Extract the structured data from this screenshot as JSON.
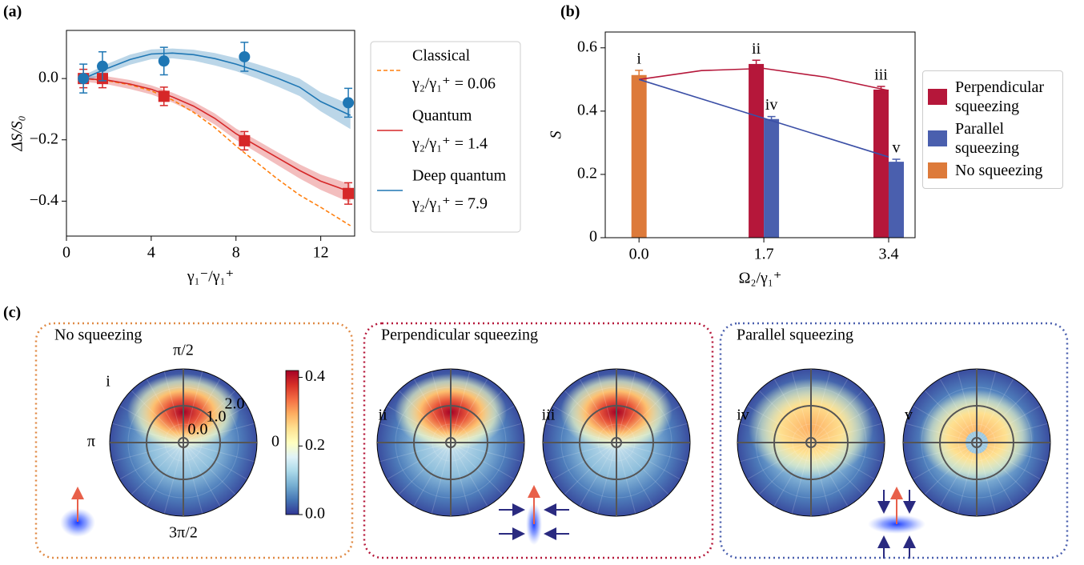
{
  "panel_labels": [
    "(a)",
    "(b)",
    "(c)"
  ],
  "chart_data": [
    {
      "type": "line",
      "xlabel": "γ₁⁻/γ₁⁺",
      "ylabel": "ΔS/S₀",
      "xlim": [
        0,
        13.6
      ],
      "ylim": [
        -0.514,
        0.157
      ],
      "xticks": [
        0,
        4,
        8,
        12
      ],
      "yticks": [
        {
          "value": 0,
          "label": "0.0"
        },
        {
          "value": -0.2,
          "label": "−0.2"
        },
        {
          "value": -0.4,
          "label": "−0.4"
        }
      ],
      "series": [
        {
          "name": "Classical",
          "note": "γ₂/γ₁⁺ = 0.06",
          "color": "#ff7f0e",
          "dashed": true,
          "x": [
            0.8,
            2,
            3,
            4,
            5,
            6,
            7,
            8,
            9,
            10,
            11,
            12,
            13.4
          ],
          "values": [
            0,
            -0.008,
            -0.02,
            -0.04,
            -0.07,
            -0.11,
            -0.16,
            -0.22,
            -0.275,
            -0.33,
            -0.38,
            -0.42,
            -0.48
          ]
        },
        {
          "name": "Quantum",
          "note": "γ₂/γ₁⁺ = 1.4",
          "color": "#d62728",
          "dashed": false,
          "x": [
            0.8,
            2,
            3,
            4,
            5,
            6,
            7,
            8,
            9,
            10,
            11,
            12,
            13.4
          ],
          "values": [
            0,
            -0.006,
            -0.018,
            -0.035,
            -0.06,
            -0.09,
            -0.13,
            -0.18,
            -0.22,
            -0.26,
            -0.3,
            -0.335,
            -0.37
          ],
          "lower": [
            -0.01,
            -0.02,
            -0.034,
            -0.052,
            -0.078,
            -0.11,
            -0.15,
            -0.2,
            -0.242,
            -0.284,
            -0.326,
            -0.363,
            -0.405
          ],
          "upper": [
            0.008,
            0.006,
            -0.005,
            -0.022,
            -0.046,
            -0.075,
            -0.114,
            -0.163,
            -0.202,
            -0.242,
            -0.28,
            -0.313,
            -0.345
          ]
        },
        {
          "name": "Deep quantum",
          "note": "γ₂/γ₁⁺ = 7.9",
          "color": "#1f77b4",
          "dashed": false,
          "x": [
            0.8,
            2,
            3,
            4,
            5,
            6,
            7,
            8,
            9,
            10,
            11,
            12,
            13.4
          ],
          "values": [
            0,
            0.035,
            0.062,
            0.08,
            0.083,
            0.078,
            0.065,
            0.047,
            0.025,
            0,
            -0.028,
            -0.075,
            -0.12
          ],
          "lower": [
            -0.012,
            0.02,
            0.045,
            0.063,
            0.066,
            0.058,
            0.043,
            0.024,
            0,
            -0.027,
            -0.057,
            -0.107,
            -0.165
          ],
          "upper": [
            0.01,
            0.05,
            0.078,
            0.095,
            0.098,
            0.094,
            0.083,
            0.067,
            0.047,
            0.025,
            0,
            -0.045,
            -0.085
          ]
        }
      ],
      "points": [
        {
          "color": "#d62728",
          "marker": "square",
          "x": [
            0.8,
            1.7,
            4.6,
            8.4,
            13.3
          ],
          "values": [
            0,
            0,
            -0.058,
            -0.203,
            -0.375
          ],
          "errors": [
            0.03,
            0.03,
            0.03,
            0.03,
            0.035
          ]
        },
        {
          "color": "#1f77b4",
          "marker": "circle",
          "x": [
            0.8,
            1.7,
            4.6,
            8.4,
            13.3
          ],
          "values": [
            0,
            0.04,
            0.057,
            0.071,
            -0.079
          ],
          "errors": [
            0.047,
            0.047,
            0.045,
            0.047,
            0.047
          ]
        }
      ]
    },
    {
      "type": "bar",
      "xlabel": "Ω₂/γ₁⁺",
      "ylabel": "S",
      "xlim": [
        -0.46,
        3.76
      ],
      "ylim": [
        0,
        0.65
      ],
      "xticks": [
        {
          "value": 0,
          "label": "0.0"
        },
        1.7,
        3.4
      ],
      "yticks": [
        0,
        0.2,
        0.4,
        0.6
      ],
      "series": [
        {
          "name": "Perpendicular squeezing",
          "color": "#b5173a",
          "x": [
            1.7,
            3.4
          ],
          "values": [
            0.549,
            0.468
          ],
          "errors": [
            0.012,
            0.01
          ],
          "labels": [
            "ii",
            "iii"
          ]
        },
        {
          "name": "Parallel squeezing",
          "color": "#4a5fae",
          "x": [
            1.7,
            3.4
          ],
          "values": [
            0.375,
            0.24
          ],
          "errors": [
            0.008,
            0.008
          ],
          "labels": [
            "iv",
            "v"
          ]
        },
        {
          "name": "No squeezing",
          "color": "#dd7a3a",
          "x": [
            0
          ],
          "values": [
            0.514
          ],
          "errors": [
            0.015
          ],
          "labels": [
            "i"
          ]
        }
      ],
      "lines": [
        {
          "color": "#b5173a",
          "x": [
            0,
            0.85,
            1.7,
            2.55,
            3.4
          ],
          "values": [
            0.5,
            0.528,
            0.535,
            0.507,
            0.465
          ]
        },
        {
          "color": "#3b4fa6",
          "x": [
            0,
            3.4
          ],
          "values": [
            0.5,
            0.255
          ]
        }
      ]
    },
    {
      "type": "polar_heatmap",
      "panels": [
        {
          "title": "No squeezing",
          "plots": [
            "i"
          ],
          "color": "#e08a45"
        },
        {
          "title": "Perpendicular squeezing",
          "plots": [
            "ii",
            "iii"
          ],
          "color": "#b5173a"
        },
        {
          "title": "Parallel squeezing",
          "plots": [
            "iv",
            "v"
          ],
          "color": "#4a5fae"
        }
      ],
      "angle_labels": [
        "π/2",
        "π",
        "0",
        "3π/2"
      ],
      "rlim": [
        0,
        2
      ],
      "rticks": [
        {
          "value": 0,
          "label": "0.0"
        },
        {
          "value": 1,
          "label": "1.0"
        },
        {
          "value": 2,
          "label": "2.0"
        }
      ],
      "colorbar": {
        "ylim": [
          0,
          0.42
        ],
        "yticks": [
          {
            "value": 0,
            "label": "0.0"
          },
          0.2,
          0.4
        ]
      }
    }
  ]
}
